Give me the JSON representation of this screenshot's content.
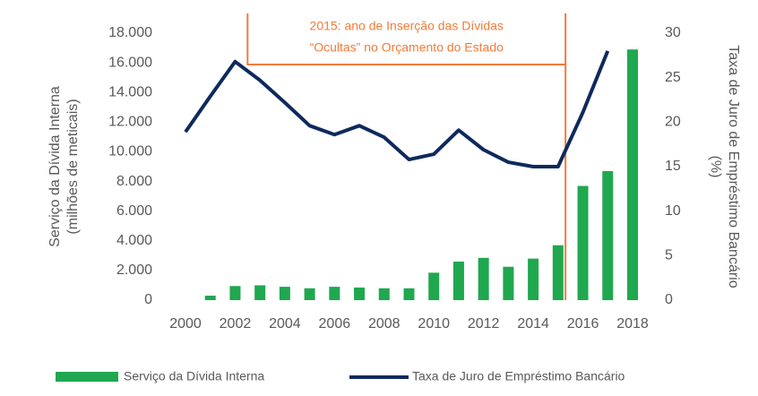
{
  "chart_data": {
    "type": "bar_line",
    "categories": [
      "2000",
      null,
      "2002",
      null,
      "2004",
      null,
      "2006",
      null,
      "2008",
      null,
      "2010",
      null,
      "2012",
      null,
      "2014",
      null,
      "2016",
      null,
      "2018"
    ],
    "series": [
      {
        "name": "Serviço da Dívida Interna",
        "type": "bar",
        "color": "#1fa84f",
        "values": [
          0,
          300,
          950,
          1000,
          900,
          800,
          900,
          850,
          800,
          800,
          1850,
          2600,
          2850,
          2250,
          2800,
          3700,
          7700,
          8700,
          16900
        ]
      },
      {
        "name": "Taxa de Juro de Empréstimo Bancário",
        "type": "line",
        "axis": "y2",
        "color": "#0e2a5c",
        "values": [
          18.9,
          22.9,
          26.8,
          24.7,
          22.2,
          19.6,
          18.6,
          19.6,
          18.3,
          15.8,
          16.4,
          19.1,
          16.9,
          15.5,
          15.0,
          15.0,
          21.1,
          28.0,
          null
        ]
      }
    ],
    "y_label": [
      "Serviço da Dívida Interna",
      "(milhões de meticais)"
    ],
    "y2_label": [
      "Taxa de Juro de Empréstimo Bancário",
      "(%)"
    ],
    "annotation": [
      "2015: ano de Inserção das Dívidas",
      "“Ocultas” no Orçamento do Estado"
    ],
    "ylim": [
      0,
      18000
    ],
    "yticks": [
      {
        "value": 0,
        "label": "0"
      },
      {
        "value": 2000,
        "label": "2.000"
      },
      {
        "value": 4000,
        "label": "4.000"
      },
      {
        "value": 6000,
        "label": "6.000"
      },
      {
        "value": 8000,
        "label": "8.000"
      },
      {
        "value": 10000,
        "label": "10.000"
      },
      {
        "value": 12000,
        "label": "12.000"
      },
      {
        "value": 14000,
        "label": "14.000"
      },
      {
        "value": 16000,
        "label": "16.000"
      },
      {
        "value": 18000,
        "label": "18.000"
      }
    ],
    "y2lim": [
      0,
      30
    ],
    "y2ticks": [
      0,
      5,
      10,
      15,
      20,
      25,
      30
    ],
    "legend": "bottom"
  }
}
